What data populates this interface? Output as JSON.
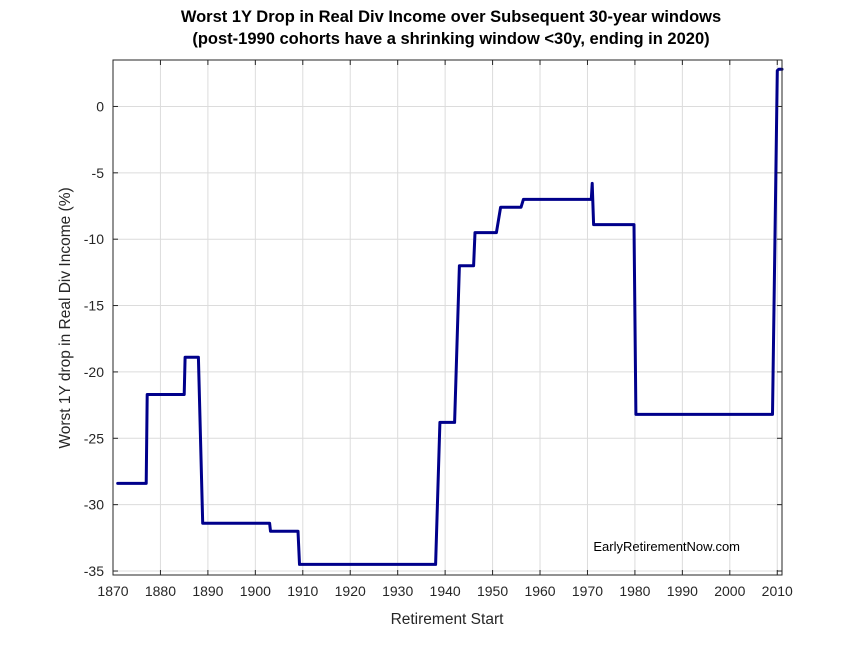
{
  "chart_data": {
    "type": "line",
    "title": "Worst 1Y Drop in Real Div Income over Subsequent 30-year windows",
    "subtitle": "(post-1990 cohorts have a shrinking window <30y, ending in 2020)",
    "xlabel": "Retirement Start",
    "ylabel": "Worst 1Y drop in Real Div Income (%)",
    "xlim": [
      1870,
      2011
    ],
    "ylim": [
      -35.3,
      3.5
    ],
    "xticks": [
      1870,
      1880,
      1890,
      1900,
      1910,
      1920,
      1930,
      1940,
      1950,
      1960,
      1970,
      1980,
      1990,
      2000,
      2010
    ],
    "yticks": [
      0,
      -5,
      -10,
      -15,
      -20,
      -25,
      -30,
      -35
    ],
    "grid": true,
    "annotation": "EarlyRetirementNow.com",
    "line_color": "#00008b",
    "series": [
      {
        "x": [
          1871,
          1877,
          1877.2,
          1885,
          1885.2,
          1888,
          1888.9,
          1903,
          1903.2,
          1909,
          1909.3,
          1938,
          1938.9,
          1942,
          1943,
          1946,
          1946.3,
          1950.8,
          1951.7,
          1956,
          1956.5,
          1970.8,
          1971,
          1971.3,
          1979.8,
          1980.2,
          2009,
          2010,
          2010.3,
          2011
        ],
        "values": [
          -28.4,
          -28.4,
          -21.7,
          -21.7,
          -18.9,
          -18.9,
          -31.4,
          -31.4,
          -32.0,
          -32.0,
          -34.5,
          -34.5,
          -23.8,
          -23.8,
          -12.0,
          -12.0,
          -9.5,
          -9.5,
          -7.6,
          -7.6,
          -7.0,
          -7.0,
          -5.8,
          -8.9,
          -8.9,
          -23.2,
          -23.2,
          2.7,
          2.8,
          2.8
        ]
      }
    ]
  }
}
